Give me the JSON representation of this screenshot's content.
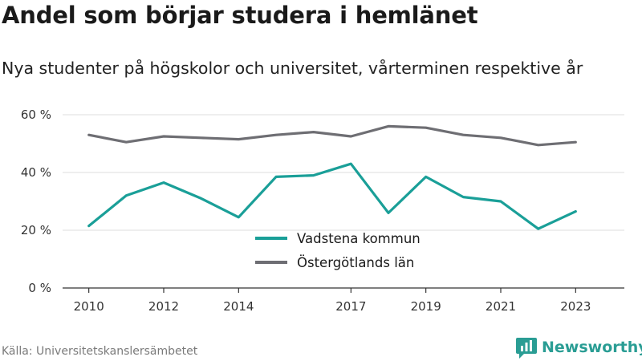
{
  "title": "Andel som börjar studera i hemlänet",
  "subtitle": "Nya studenter på högskolor och universitet, vårterminen respektive år",
  "source": "Källa: Universitetskanslersämbetet",
  "brand": "Newsworthy",
  "colors": {
    "vadstena": "#1a9f98",
    "ostergotland": "#6e6e73",
    "grid": "#dddddd",
    "axis": "#333333",
    "brand": "#2a9d94"
  },
  "chart_data": {
    "type": "line",
    "x": [
      2010,
      2011,
      2012,
      2013,
      2014,
      2015,
      2016,
      2017,
      2018,
      2019,
      2020,
      2021,
      2022,
      2023
    ],
    "xticks": [
      2010,
      2012,
      2014,
      2017,
      2019,
      2021,
      2023
    ],
    "yticks": [
      0,
      20,
      40,
      60
    ],
    "ytick_labels": [
      "0 %",
      "20 %",
      "40 %",
      "60 %"
    ],
    "ylim": [
      0,
      60
    ],
    "grid": true,
    "legend_position": "center",
    "series": [
      {
        "name": "Vadstena kommun",
        "color_key": "vadstena",
        "values": [
          21.5,
          32.0,
          36.5,
          31.0,
          24.5,
          38.5,
          39.0,
          43.0,
          26.0,
          38.5,
          31.5,
          30.0,
          20.5,
          26.5
        ]
      },
      {
        "name": "Östergötlands län",
        "color_key": "ostergotland",
        "values": [
          53.0,
          50.5,
          52.5,
          52.0,
          51.5,
          53.0,
          54.0,
          52.5,
          56.0,
          55.5,
          53.0,
          52.0,
          49.5,
          50.5
        ]
      }
    ]
  }
}
